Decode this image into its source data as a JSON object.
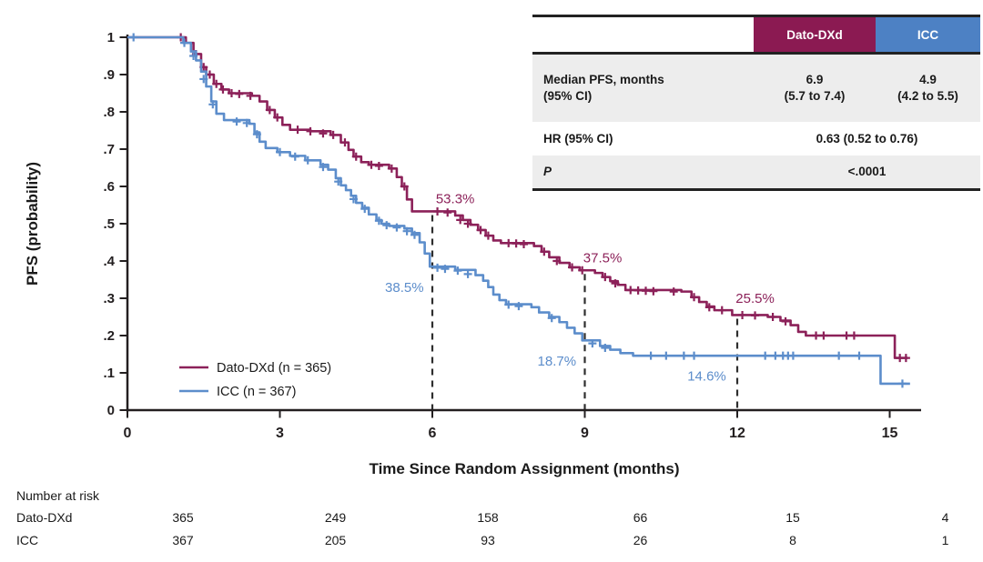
{
  "chart_data": {
    "type": "line",
    "subtype": "kaplan-meier-step",
    "xlabel": "Time Since Random Assignment (months)",
    "ylabel": "PFS (probability)",
    "xlim": [
      0,
      15.5
    ],
    "ylim": [
      0,
      1
    ],
    "grid": false,
    "x_ticks": {
      "values": [
        0,
        3,
        6,
        9,
        12,
        15
      ],
      "labels": [
        "0",
        "3",
        "6",
        "9",
        "12",
        "15"
      ]
    },
    "y_ticks": {
      "values": [
        0,
        0.1,
        0.2,
        0.3,
        0.4,
        0.5,
        0.6,
        0.7,
        0.8,
        0.9,
        1.0
      ],
      "labels": [
        "0",
        ".1",
        ".2",
        ".3",
        ".4",
        ".5",
        ".6",
        ".7",
        ".8",
        ".9",
        "1"
      ]
    },
    "colors": {
      "dato": "#8C2159",
      "icc": "#5C8DCB",
      "dato_header": "#8B1A52",
      "icc_header": "#4D81C4",
      "axis": "#231F20",
      "dashed": "#2E2E2E",
      "row_gray": "#EDEDED",
      "header_text": "#FFFFFF"
    },
    "series": [
      {
        "name": "Dato-DXd",
        "n": 365,
        "color_key": "dato",
        "points": [
          [
            0,
            1.0
          ],
          [
            1.05,
            1.0
          ],
          [
            1.15,
            0.985
          ],
          [
            1.3,
            0.955
          ],
          [
            1.45,
            0.92
          ],
          [
            1.55,
            0.9
          ],
          [
            1.7,
            0.875
          ],
          [
            1.85,
            0.86
          ],
          [
            2.0,
            0.85
          ],
          [
            2.45,
            0.843
          ],
          [
            2.6,
            0.828
          ],
          [
            2.75,
            0.805
          ],
          [
            2.9,
            0.785
          ],
          [
            3.05,
            0.765
          ],
          [
            3.2,
            0.752
          ],
          [
            3.6,
            0.748
          ],
          [
            4.0,
            0.738
          ],
          [
            4.2,
            0.718
          ],
          [
            4.35,
            0.698
          ],
          [
            4.45,
            0.68
          ],
          [
            4.6,
            0.665
          ],
          [
            4.75,
            0.658
          ],
          [
            5.15,
            0.648
          ],
          [
            5.3,
            0.625
          ],
          [
            5.4,
            0.6
          ],
          [
            5.5,
            0.565
          ],
          [
            5.6,
            0.533
          ],
          [
            6.45,
            0.522
          ],
          [
            6.6,
            0.51
          ],
          [
            6.75,
            0.497
          ],
          [
            6.9,
            0.483
          ],
          [
            7.05,
            0.468
          ],
          [
            7.2,
            0.455
          ],
          [
            7.35,
            0.448
          ],
          [
            8.0,
            0.44
          ],
          [
            8.15,
            0.425
          ],
          [
            8.3,
            0.41
          ],
          [
            8.5,
            0.395
          ],
          [
            8.7,
            0.383
          ],
          [
            8.9,
            0.375
          ],
          [
            9.2,
            0.368
          ],
          [
            9.35,
            0.357
          ],
          [
            9.5,
            0.346
          ],
          [
            9.65,
            0.336
          ],
          [
            9.8,
            0.322
          ],
          [
            10.9,
            0.318
          ],
          [
            11.1,
            0.303
          ],
          [
            11.25,
            0.29
          ],
          [
            11.4,
            0.278
          ],
          [
            11.55,
            0.268
          ],
          [
            11.9,
            0.255
          ],
          [
            12.6,
            0.25
          ],
          [
            12.85,
            0.24
          ],
          [
            13.05,
            0.228
          ],
          [
            13.2,
            0.21
          ],
          [
            13.35,
            0.2
          ],
          [
            15.05,
            0.2
          ],
          [
            15.1,
            0.14
          ],
          [
            15.35,
            0.14
          ]
        ],
        "censor_marks": [
          [
            1.05,
            1.0
          ],
          [
            1.35,
            0.955
          ],
          [
            1.5,
            0.92
          ],
          [
            1.62,
            0.9
          ],
          [
            1.75,
            0.875
          ],
          [
            1.88,
            0.86
          ],
          [
            2.05,
            0.85
          ],
          [
            2.2,
            0.848
          ],
          [
            2.42,
            0.843
          ],
          [
            2.8,
            0.805
          ],
          [
            2.95,
            0.785
          ],
          [
            3.35,
            0.752
          ],
          [
            3.6,
            0.748
          ],
          [
            3.85,
            0.742
          ],
          [
            4.05,
            0.738
          ],
          [
            4.28,
            0.718
          ],
          [
            4.5,
            0.68
          ],
          [
            4.8,
            0.658
          ],
          [
            4.95,
            0.655
          ],
          [
            5.2,
            0.648
          ],
          [
            5.45,
            0.6
          ],
          [
            6.1,
            0.533
          ],
          [
            6.3,
            0.53
          ],
          [
            6.55,
            0.51
          ],
          [
            6.7,
            0.5
          ],
          [
            6.95,
            0.483
          ],
          [
            7.1,
            0.468
          ],
          [
            7.5,
            0.448
          ],
          [
            7.65,
            0.447
          ],
          [
            7.8,
            0.445
          ],
          [
            8.2,
            0.425
          ],
          [
            8.45,
            0.4
          ],
          [
            8.75,
            0.383
          ],
          [
            8.95,
            0.375
          ],
          [
            9.4,
            0.357
          ],
          [
            9.6,
            0.34
          ],
          [
            9.9,
            0.322
          ],
          [
            10.05,
            0.321
          ],
          [
            10.2,
            0.32
          ],
          [
            10.35,
            0.319
          ],
          [
            10.75,
            0.318
          ],
          [
            11.15,
            0.303
          ],
          [
            11.45,
            0.276
          ],
          [
            11.7,
            0.268
          ],
          [
            12.1,
            0.255
          ],
          [
            12.35,
            0.254
          ],
          [
            12.7,
            0.25
          ],
          [
            12.95,
            0.238
          ],
          [
            13.55,
            0.2
          ],
          [
            13.7,
            0.2
          ],
          [
            14.15,
            0.2
          ],
          [
            14.3,
            0.2
          ],
          [
            15.2,
            0.14
          ],
          [
            15.32,
            0.14
          ]
        ]
      },
      {
        "name": "ICC",
        "n": 367,
        "color_key": "icc",
        "points": [
          [
            0,
            1.0
          ],
          [
            0.95,
            1.0
          ],
          [
            1.1,
            0.985
          ],
          [
            1.25,
            0.962
          ],
          [
            1.35,
            0.938
          ],
          [
            1.45,
            0.908
          ],
          [
            1.55,
            0.868
          ],
          [
            1.65,
            0.828
          ],
          [
            1.75,
            0.795
          ],
          [
            1.9,
            0.778
          ],
          [
            2.4,
            0.768
          ],
          [
            2.5,
            0.745
          ],
          [
            2.6,
            0.72
          ],
          [
            2.72,
            0.703
          ],
          [
            2.95,
            0.692
          ],
          [
            3.2,
            0.682
          ],
          [
            3.5,
            0.67
          ],
          [
            3.8,
            0.658
          ],
          [
            3.95,
            0.645
          ],
          [
            4.1,
            0.622
          ],
          [
            4.2,
            0.603
          ],
          [
            4.3,
            0.59
          ],
          [
            4.4,
            0.575
          ],
          [
            4.5,
            0.556
          ],
          [
            4.62,
            0.543
          ],
          [
            4.75,
            0.525
          ],
          [
            4.9,
            0.51
          ],
          [
            5.0,
            0.5
          ],
          [
            5.15,
            0.494
          ],
          [
            5.45,
            0.487
          ],
          [
            5.6,
            0.475
          ],
          [
            5.75,
            0.45
          ],
          [
            5.85,
            0.42
          ],
          [
            5.95,
            0.385
          ],
          [
            6.45,
            0.376
          ],
          [
            6.85,
            0.362
          ],
          [
            7.0,
            0.347
          ],
          [
            7.1,
            0.33
          ],
          [
            7.2,
            0.31
          ],
          [
            7.32,
            0.295
          ],
          [
            7.45,
            0.284
          ],
          [
            7.95,
            0.276
          ],
          [
            8.1,
            0.262
          ],
          [
            8.3,
            0.25
          ],
          [
            8.5,
            0.236
          ],
          [
            8.65,
            0.221
          ],
          [
            8.8,
            0.206
          ],
          [
            8.95,
            0.187
          ],
          [
            9.3,
            0.172
          ],
          [
            9.5,
            0.162
          ],
          [
            9.7,
            0.153
          ],
          [
            9.95,
            0.146
          ],
          [
            14.75,
            0.146
          ],
          [
            14.82,
            0.071
          ],
          [
            15.4,
            0.071
          ]
        ],
        "censor_marks": [
          [
            0.12,
            1.0
          ],
          [
            1.12,
            0.985
          ],
          [
            1.3,
            0.95
          ],
          [
            1.5,
            0.888
          ],
          [
            1.68,
            0.82
          ],
          [
            2.15,
            0.774
          ],
          [
            2.35,
            0.77
          ],
          [
            2.55,
            0.74
          ],
          [
            3.0,
            0.692
          ],
          [
            3.3,
            0.68
          ],
          [
            3.55,
            0.67
          ],
          [
            3.85,
            0.652
          ],
          [
            4.15,
            0.613
          ],
          [
            4.45,
            0.566
          ],
          [
            4.67,
            0.54
          ],
          [
            4.95,
            0.508
          ],
          [
            5.1,
            0.496
          ],
          [
            5.3,
            0.49
          ],
          [
            5.5,
            0.48
          ],
          [
            5.65,
            0.47
          ],
          [
            6.1,
            0.382
          ],
          [
            6.25,
            0.379
          ],
          [
            6.5,
            0.374
          ],
          [
            6.7,
            0.365
          ],
          [
            7.5,
            0.283
          ],
          [
            7.7,
            0.279
          ],
          [
            8.35,
            0.247
          ],
          [
            9.15,
            0.179
          ],
          [
            9.4,
            0.167
          ],
          [
            10.3,
            0.146
          ],
          [
            10.6,
            0.146
          ],
          [
            10.95,
            0.146
          ],
          [
            11.15,
            0.146
          ],
          [
            12.55,
            0.146
          ],
          [
            12.75,
            0.146
          ],
          [
            12.9,
            0.146
          ],
          [
            13.0,
            0.146
          ],
          [
            13.1,
            0.146
          ],
          [
            14.0,
            0.146
          ],
          [
            14.4,
            0.146
          ],
          [
            15.25,
            0.071
          ]
        ]
      }
    ],
    "dashed_guides": [
      {
        "month": 6,
        "from_prob": 0.533
      },
      {
        "month": 9,
        "from_prob": 0.375
      },
      {
        "month": 12,
        "from_prob": 0.255
      }
    ],
    "annotations": [
      {
        "text": "53.3%",
        "month": 6.45,
        "prob": 0.567,
        "series": "dato"
      },
      {
        "text": "38.5%",
        "month": 5.45,
        "prob": 0.329,
        "series": "icc"
      },
      {
        "text": "37.5%",
        "month": 9.35,
        "prob": 0.408,
        "series": "dato"
      },
      {
        "text": "18.7%",
        "month": 8.45,
        "prob": 0.132,
        "series": "icc"
      },
      {
        "text": "25.5%",
        "month": 12.35,
        "prob": 0.3,
        "series": "dato"
      },
      {
        "text": "14.6%",
        "month": 11.4,
        "prob": 0.092,
        "series": "icc"
      }
    ],
    "legend": {
      "position": "inside-bottom-left",
      "items": [
        {
          "label": "Dato-DXd (n = 365)",
          "series": "dato"
        },
        {
          "label": "ICC (n = 367)",
          "series": "icc"
        }
      ]
    },
    "stats_table": {
      "header": {
        "dato": "Dato-DXd",
        "icc": "ICC"
      },
      "median": {
        "label1": "Median PFS, months",
        "label2": "(95% CI)",
        "dato1": "6.9",
        "dato2": "(5.7 to 7.4)",
        "icc1": "4.9",
        "icc2": "(4.2 to 5.5)"
      },
      "hr": {
        "label": "HR (95% CI)",
        "value": "0.63 (0.52 to 0.76)"
      },
      "p": {
        "label": "P",
        "value": "<.0001"
      }
    },
    "risk_table": {
      "title": "Number at risk",
      "time_points": [
        0,
        3,
        6,
        9,
        12,
        15
      ],
      "rows": [
        {
          "label": "Dato-DXd",
          "values": [
            365,
            249,
            158,
            66,
            15,
            4
          ]
        },
        {
          "label": "ICC",
          "values": [
            367,
            205,
            93,
            26,
            8,
            1
          ]
        }
      ]
    }
  }
}
